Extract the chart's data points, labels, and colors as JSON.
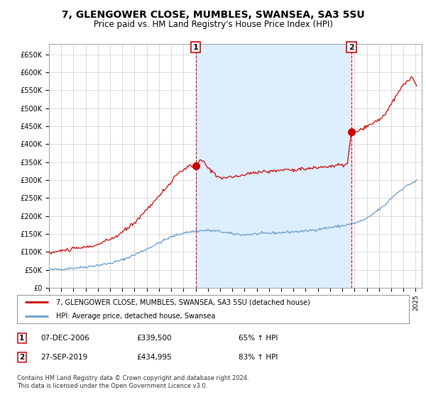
{
  "title": "7, GLENGOWER CLOSE, MUMBLES, SWANSEA, SA3 5SU",
  "subtitle": "Price paid vs. HM Land Registry's House Price Index (HPI)",
  "title_fontsize": 10,
  "subtitle_fontsize": 8.5,
  "ylim": [
    0,
    680000
  ],
  "yticks": [
    0,
    50000,
    100000,
    150000,
    200000,
    250000,
    300000,
    350000,
    400000,
    450000,
    500000,
    550000,
    600000,
    650000
  ],
  "ytick_labels": [
    "£0",
    "£50K",
    "£100K",
    "£150K",
    "£200K",
    "£250K",
    "£300K",
    "£350K",
    "£400K",
    "£450K",
    "£500K",
    "£550K",
    "£600K",
    "£650K"
  ],
  "grid_color": "#cccccc",
  "background_color": "#ffffff",
  "plot_bg_color": "#ffffff",
  "shade_color": "#ddeeff",
  "red_line_color": "#cc0000",
  "blue_line_color": "#6699cc",
  "marker1_date_idx": 144,
  "marker1_value": 339500,
  "marker1_label": "1",
  "marker1_date": "07-DEC-2006",
  "marker1_price": "£339,500",
  "marker1_hpi": "65% ↑ HPI",
  "marker2_date_idx": 297,
  "marker2_value": 434995,
  "marker2_label": "2",
  "marker2_date": "27-SEP-2019",
  "marker2_price": "£434,995",
  "marker2_hpi": "83% ↑ HPI",
  "legend_line1": "7, GLENGOWER CLOSE, MUMBLES, SWANSEA, SA3 5SU (detached house)",
  "legend_line2": "HPI: Average price, detached house, Swansea",
  "footer": "Contains HM Land Registry data © Crown copyright and database right 2024.\nThis data is licensed under the Open Government Licence v3.0.",
  "xstart_year": 1995,
  "xend_year": 2025
}
